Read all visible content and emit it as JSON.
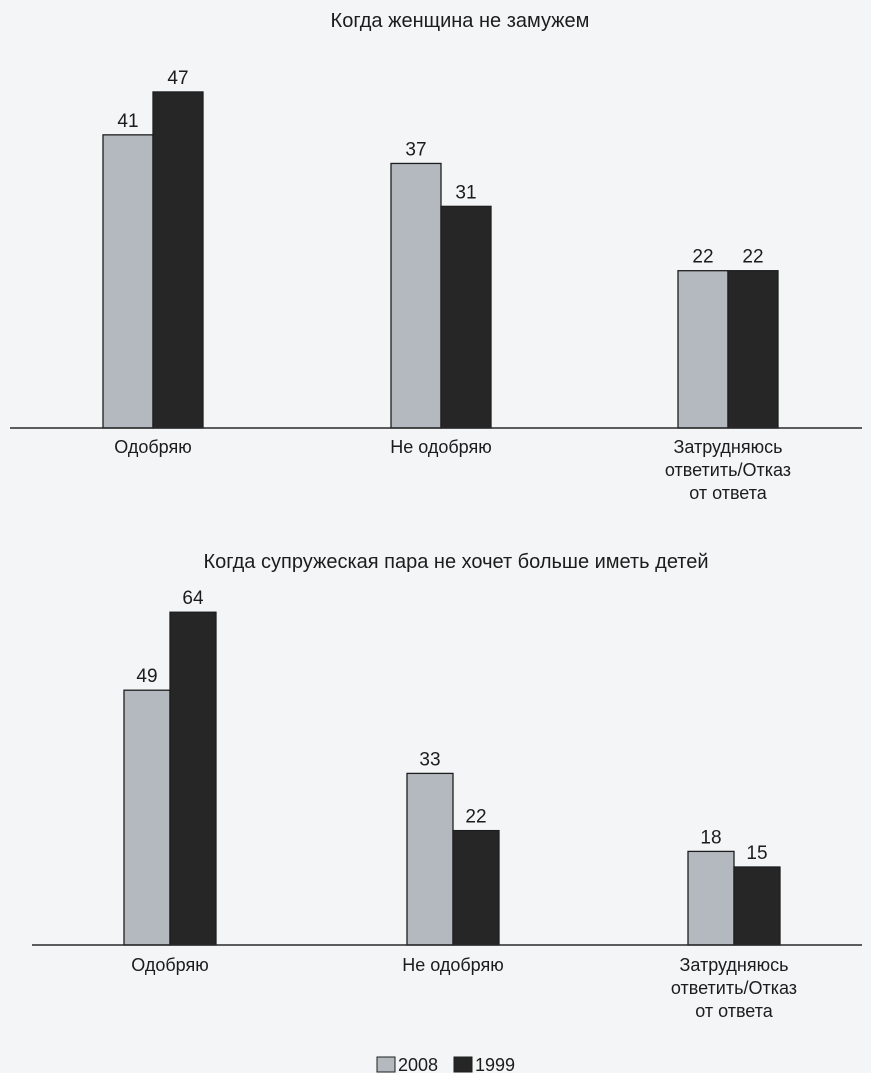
{
  "chart_data": [
    {
      "type": "bar",
      "title": "Когда женщина не замужем",
      "categories": [
        [
          "Одобряю"
        ],
        [
          "Не одобряю"
        ],
        [
          "Затрудняюсь",
          "ответить/Отказ",
          "от ответа"
        ]
      ],
      "series": [
        {
          "name": "2008",
          "values": [
            41,
            37,
            22
          ]
        },
        {
          "name": "1999",
          "values": [
            47,
            31,
            22
          ]
        }
      ],
      "ylim": [
        0,
        50
      ]
    },
    {
      "type": "bar",
      "title": "Когда супружеская пара не хочет больше иметь детей",
      "categories": [
        [
          "Одобряю"
        ],
        [
          "Не одобряю"
        ],
        [
          "Затрудняюсь",
          "ответить/Отказ",
          "от ответа"
        ]
      ],
      "series": [
        {
          "name": "2008",
          "values": [
            49,
            33,
            18
          ]
        },
        {
          "name": "1999",
          "values": [
            64,
            22,
            15
          ]
        }
      ],
      "ylim": [
        0,
        68
      ]
    }
  ],
  "legend": [
    {
      "label": "2008",
      "color": "#b4b9bf"
    },
    {
      "label": "1999",
      "color": "#262626"
    }
  ],
  "colors": {
    "series_2008": "#b4b9bf",
    "series_1999": "#262626",
    "axis": "#2a2a2a"
  }
}
